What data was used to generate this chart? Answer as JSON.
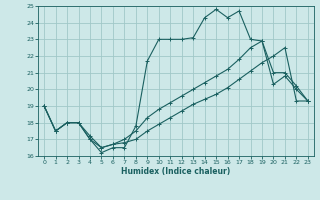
{
  "xlabel": "Humidex (Indice chaleur)",
  "bg_color": "#cde8e8",
  "grid_color": "#a0c8c8",
  "line_color": "#1a6060",
  "xlim": [
    -0.5,
    23.5
  ],
  "ylim": [
    16,
    25
  ],
  "xticks": [
    0,
    1,
    2,
    3,
    4,
    5,
    6,
    7,
    8,
    9,
    10,
    11,
    12,
    13,
    14,
    15,
    16,
    17,
    18,
    19,
    20,
    21,
    22,
    23
  ],
  "yticks": [
    16,
    17,
    18,
    19,
    20,
    21,
    22,
    23,
    24,
    25
  ],
  "line1_x": [
    0,
    1,
    2,
    3,
    4,
    5,
    6,
    7,
    8,
    9,
    10,
    11,
    12,
    13,
    14,
    15,
    16,
    17,
    18,
    19,
    20,
    21,
    22,
    23
  ],
  "line1_y": [
    19.0,
    17.5,
    18.0,
    18.0,
    17.0,
    16.2,
    16.5,
    16.5,
    17.8,
    21.7,
    23.0,
    23.0,
    23.0,
    23.1,
    24.3,
    24.8,
    24.3,
    24.7,
    23.0,
    22.9,
    20.3,
    20.8,
    20.0,
    19.3
  ],
  "line2_x": [
    0,
    1,
    2,
    3,
    4,
    5,
    6,
    7,
    8,
    9,
    10,
    11,
    12,
    13,
    14,
    15,
    16,
    17,
    18,
    19,
    20,
    21,
    22,
    23
  ],
  "line2_y": [
    19.0,
    17.5,
    18.0,
    18.0,
    17.2,
    16.5,
    16.7,
    17.0,
    17.5,
    18.3,
    18.8,
    19.2,
    19.6,
    20.0,
    20.4,
    20.8,
    21.2,
    21.8,
    22.5,
    22.9,
    21.0,
    21.0,
    20.2,
    19.3
  ],
  "line3_x": [
    0,
    1,
    2,
    3,
    4,
    5,
    6,
    7,
    8,
    9,
    10,
    11,
    12,
    13,
    14,
    15,
    16,
    17,
    18,
    19,
    20,
    21,
    22,
    23
  ],
  "line3_y": [
    19.0,
    17.5,
    18.0,
    18.0,
    17.0,
    16.5,
    16.7,
    16.8,
    17.0,
    17.5,
    17.9,
    18.3,
    18.7,
    19.1,
    19.4,
    19.7,
    20.1,
    20.6,
    21.1,
    21.6,
    22.0,
    22.5,
    19.3,
    19.3
  ],
  "figwidth": 3.2,
  "figheight": 2.0,
  "dpi": 100
}
